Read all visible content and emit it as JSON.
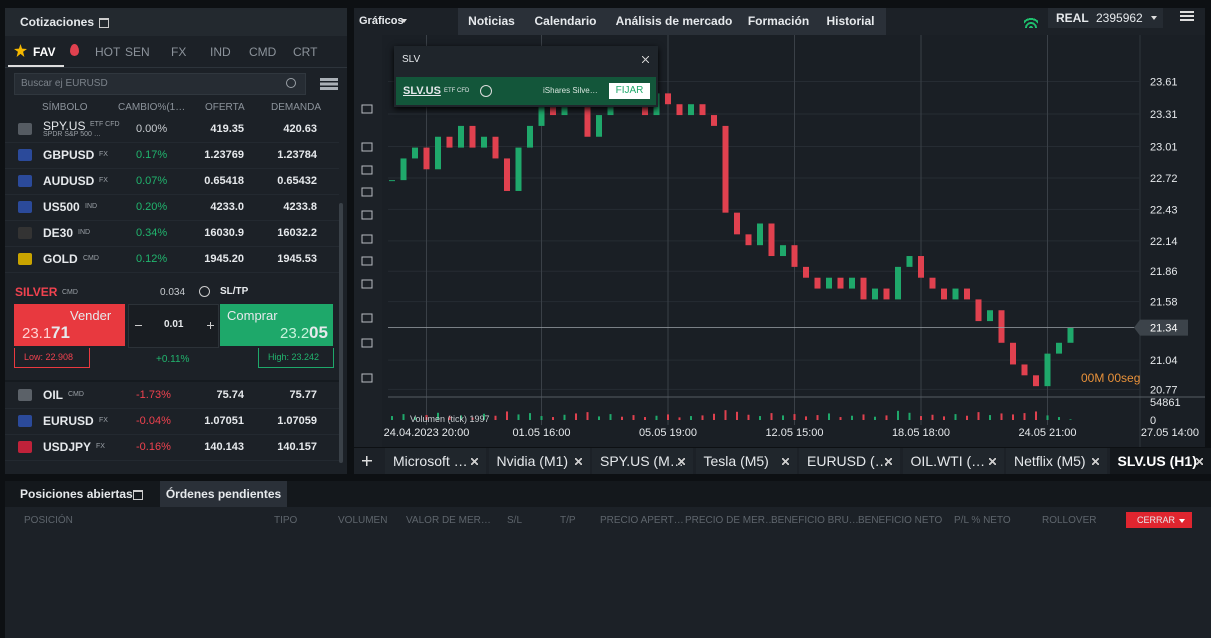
{
  "quotes_panel": {
    "title": "Cotizaciones",
    "tabs": [
      "FAV",
      "HOT",
      "SEN",
      "FX",
      "IND",
      "CMD",
      "CRT"
    ],
    "search_placeholder": "Buscar ej EURUSD",
    "columns": [
      "SÍMBOLO",
      "CAMBIO%(1…",
      "OFERTA",
      "DEMANDA"
    ],
    "rows": [
      {
        "symbol": "SPY.US",
        "tag": "ETF CFD",
        "sub": "SPDR S&P 500 …",
        "change": "0.00%",
        "bid": "419.35",
        "ask": "420.63"
      },
      {
        "symbol": "GBPUSD",
        "tag": "FX",
        "change": "0.17%",
        "bid": "1.23769",
        "ask": "1.23784"
      },
      {
        "symbol": "AUDUSD",
        "tag": "FX",
        "change": "0.07%",
        "bid": "0.65418",
        "ask": "0.65432"
      },
      {
        "symbol": "US500",
        "tag": "IND",
        "change": "0.20%",
        "bid": "4233.0",
        "ask": "4233.8"
      },
      {
        "symbol": "DE30",
        "tag": "IND",
        "change": "0.34%",
        "bid": "16030.9",
        "ask": "16032.2"
      },
      {
        "symbol": "GOLD",
        "tag": "CMD",
        "change": "0.12%",
        "bid": "1945.20",
        "ask": "1945.53"
      }
    ],
    "selected": {
      "symbol": "SILVER",
      "tag": "CMD",
      "spread": "0.034",
      "sltp": "SL/TP",
      "sell_label": "Vender",
      "sell_price_main": "23.1",
      "sell_price_big": "71",
      "buy_label": "Comprar",
      "buy_price_main": "23.2",
      "buy_price_big": "05",
      "volume": "0.01",
      "low": "Low: 22.908",
      "high": "High: 23.242",
      "change": "+0.11%"
    },
    "rows2": [
      {
        "symbol": "OIL",
        "tag": "CMD",
        "change": "-1.73%",
        "bid": "75.74",
        "ask": "75.77"
      },
      {
        "symbol": "EURUSD",
        "tag": "FX",
        "change": "-0.04%",
        "bid": "1.07051",
        "ask": "1.07059"
      },
      {
        "symbol": "USDJPY",
        "tag": "FX",
        "change": "-0.16%",
        "bid": "140.143",
        "ask": "140.157"
      }
    ]
  },
  "top_bar": {
    "menu": "Gráficos",
    "tabs": [
      "Noticias",
      "Calendario",
      "Análisis de mercado",
      "Formación",
      "Historial"
    ],
    "account_type": "REAL",
    "account_number": "2395962"
  },
  "symbol_search": {
    "query": "SLV",
    "result_symbol": "SLV.US",
    "result_tag": "ETF CFD",
    "result_name": "iShares Silve…",
    "button": "FIJAR"
  },
  "chart_data": {
    "type": "candlestick",
    "values": [
      22.7,
      22.9,
      23.0,
      22.8,
      23.1,
      23.0,
      23.2,
      23.0,
      23.1,
      22.9,
      22.6,
      23.0,
      23.2,
      23.4,
      23.3,
      23.5,
      23.4,
      23.1,
      23.3,
      23.6,
      23.5,
      23.4,
      23.3,
      23.5,
      23.4,
      23.3,
      23.4,
      23.3,
      23.2,
      22.4,
      22.2,
      22.1,
      22.3,
      22.0,
      22.1,
      21.9,
      21.8,
      21.7,
      21.8,
      21.7,
      21.8,
      21.6,
      21.7,
      21.6,
      21.9,
      22.0,
      21.8,
      21.7,
      21.6,
      21.7,
      21.6,
      21.4,
      21.5,
      21.2,
      21.0,
      20.9,
      20.8,
      21.1,
      21.2,
      21.34
    ],
    "volumes": [
      12000,
      18000,
      9000,
      15000,
      22000,
      11000,
      14000,
      8000,
      19000,
      13000,
      26000,
      17000,
      21000,
      12000,
      9000,
      16000,
      20000,
      24000,
      11000,
      18000,
      10000,
      15000,
      9000,
      13000,
      17000,
      8000,
      12000,
      14000,
      19000,
      30000,
      25000,
      16000,
      12000,
      21000,
      14000,
      18000,
      11000,
      15000,
      20000,
      9000,
      13000,
      17000,
      10000,
      14000,
      28000,
      22000,
      12000,
      16000,
      11000,
      18000,
      13000,
      24000,
      15000,
      20000,
      17000,
      21000,
      26000,
      14000,
      9000,
      1997
    ],
    "categories": [
      null,
      null,
      null,
      "24.04.2023 20:00",
      null,
      null,
      null,
      null,
      null,
      null,
      null,
      null,
      null,
      "01.05 16:00",
      null,
      null,
      null,
      null,
      null,
      null,
      null,
      null,
      null,
      null,
      "05.05 19:00",
      null,
      null,
      null,
      null,
      null,
      null,
      null,
      null,
      null,
      null,
      "12.05 15:00",
      null,
      null,
      null,
      null,
      null,
      null,
      null,
      null,
      null,
      null,
      "18.05 18:00",
      null,
      null,
      null,
      null,
      null,
      null,
      null,
      null,
      null,
      null,
      "24.05 21:00",
      null,
      null
    ],
    "x_end_label": "27.05 14:00",
    "ylim": [
      20.7,
      23.9
    ],
    "yticks": [
      23.61,
      23.31,
      23.01,
      22.72,
      22.43,
      22.14,
      21.86,
      21.58,
      21.04,
      20.77
    ],
    "volume_ylim": [
      0,
      54861
    ],
    "volume_ticks": [
      54861,
      0
    ],
    "volume_title": "Volumen (tick)",
    "countdown": "00M 00seg",
    "up_color": "#1fa86b",
    "down_color": "#e0414f",
    "grid": true
  },
  "instrument_tabs": [
    "Microsoft …",
    "Nvidia (M1)",
    "SPY.US (M…",
    "Tesla (M5)",
    "EURUSD (…",
    "OIL.WTI (…",
    "Netflix (M5)",
    "SLV.US (H1)"
  ],
  "positions_panel": {
    "tabs": [
      "Posiciones abiertas",
      "Órdenes pendientes"
    ],
    "columns": [
      "POSICIÓN",
      "TIPO",
      "VOLUMEN",
      "VALOR DE MER…",
      "S/L",
      "T/P",
      "PRECIO APERT…",
      "PRECIO DE MER…",
      "BENEFICIO BRU…",
      "BENEFICIO NETO",
      "P/L % NETO",
      "ROLLOVER"
    ],
    "close_button": "CERRAR"
  }
}
